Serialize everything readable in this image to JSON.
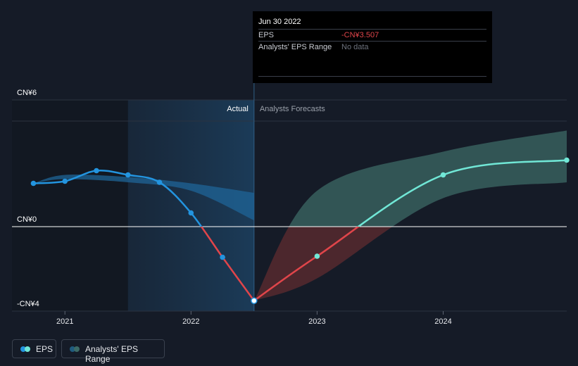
{
  "tooltip": {
    "date": "Jun 30 2022",
    "eps_label": "EPS",
    "eps_value": "-CN¥3.507",
    "range_label": "Analysts' EPS Range",
    "range_value": "No data"
  },
  "legend": {
    "eps": "EPS",
    "range": "Analysts' EPS Range"
  },
  "colors": {
    "background": "#151b27",
    "eps_actual": "#2394df",
    "eps_negative": "#e0454a",
    "forecast": "#71e7d6",
    "forecast_band": "#3c6a66",
    "negative_band": "#5a2a30",
    "tooltip_negative": "#e0454a"
  },
  "chart_data": {
    "type": "line",
    "y_ticks": [
      {
        "value": 6,
        "label": "CN¥6"
      },
      {
        "value": 0,
        "label": "CN¥0"
      },
      {
        "value": -4,
        "label": "-CN¥4"
      }
    ],
    "x_ticks": [
      {
        "value": 2021,
        "label": "2021"
      },
      {
        "value": 2022,
        "label": "2022"
      },
      {
        "value": 2023,
        "label": "2023"
      },
      {
        "value": 2024,
        "label": "2024"
      }
    ],
    "ylim": [
      -4,
      6
    ],
    "xlim": [
      2020.58,
      2024.98
    ],
    "section_labels": {
      "actual": "Actual",
      "forecast": "Analysts Forecasts"
    },
    "divider_x": 2022.5,
    "past_shade_start": 2021.5,
    "series": [
      {
        "name": "EPS",
        "role": "actual",
        "x": [
          2020.75,
          2021.0,
          2021.25,
          2021.5,
          2021.75,
          2022.0,
          2022.25,
          2022.5
        ],
        "values": [
          2.05,
          2.15,
          2.65,
          2.45,
          2.1,
          0.65,
          -1.45,
          -3.507
        ]
      },
      {
        "name": "EPS",
        "role": "forecast",
        "x": [
          2022.5,
          2023.0,
          2024.0,
          2024.98
        ],
        "values": [
          -3.507,
          -1.4,
          2.45,
          3.15
        ]
      }
    ],
    "past_range_band": {
      "x": [
        2020.75,
        2021.0,
        2021.5,
        2022.0,
        2022.5
      ],
      "high": [
        2.05,
        2.45,
        2.35,
        2.05,
        1.6
      ],
      "low": [
        2.05,
        2.25,
        2.1,
        1.7,
        0.3
      ]
    },
    "forecast_range_band": {
      "x": [
        2022.5,
        2023.0,
        2024.0,
        2024.98
      ],
      "high": [
        -3.507,
        1.7,
        3.55,
        4.55
      ],
      "low": [
        -3.507,
        -2.45,
        1.35,
        2.1
      ]
    }
  }
}
